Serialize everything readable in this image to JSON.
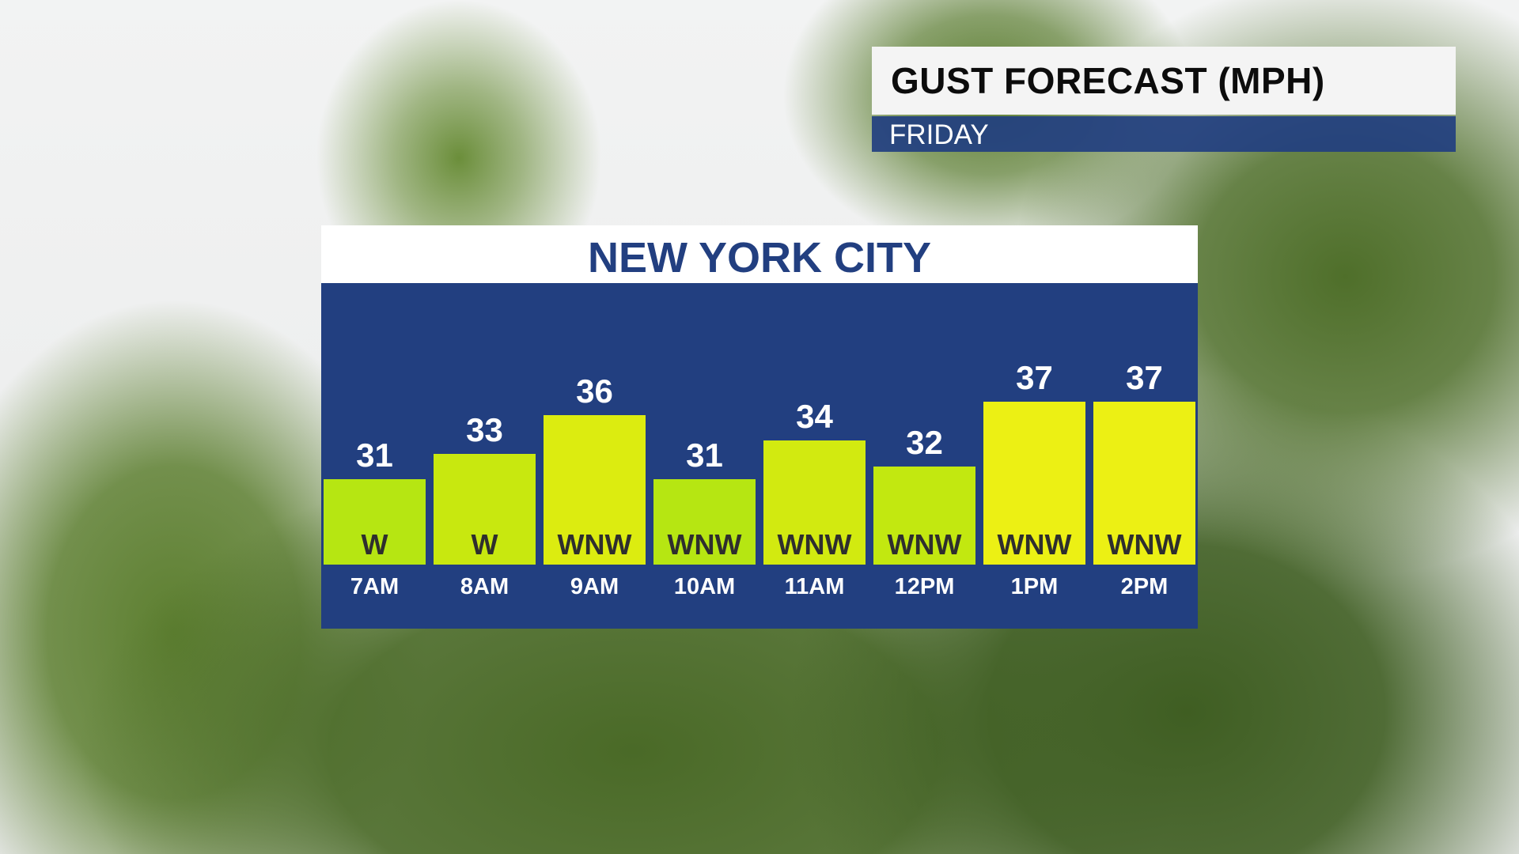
{
  "header": {
    "title": "GUST FORECAST (MPH)",
    "subtitle": "FRIDAY"
  },
  "chart_data": {
    "type": "bar",
    "title": "NEW YORK CITY",
    "units": "MPH",
    "categories": [
      "7AM",
      "8AM",
      "9AM",
      "10AM",
      "11AM",
      "12PM",
      "1PM",
      "2PM"
    ],
    "values": [
      31,
      33,
      36,
      31,
      34,
      32,
      37,
      37
    ],
    "directions": [
      "W",
      "W",
      "WNW",
      "WNW",
      "WNW",
      "WNW",
      "WNW",
      "WNW"
    ],
    "colors": [
      "#b6e612",
      "#c8e80f",
      "#dcec10",
      "#b6e612",
      "#d2ea10",
      "#c2e810",
      "#ecf014",
      "#ecf014"
    ],
    "panel_color": "#223f80",
    "grid": false
  }
}
